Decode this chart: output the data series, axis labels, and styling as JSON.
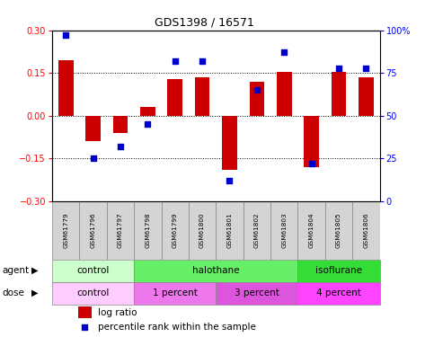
{
  "title": "GDS1398 / 16571",
  "samples": [
    "GSM61779",
    "GSM61796",
    "GSM61797",
    "GSM61798",
    "GSM61799",
    "GSM61800",
    "GSM61801",
    "GSM61802",
    "GSM61803",
    "GSM61804",
    "GSM61805",
    "GSM61806"
  ],
  "log_ratio": [
    0.195,
    -0.09,
    -0.06,
    0.03,
    0.13,
    0.135,
    -0.19,
    0.12,
    0.155,
    -0.18,
    0.155,
    0.135
  ],
  "percentile_rank": [
    97,
    25,
    32,
    45,
    82,
    82,
    12,
    65,
    87,
    22,
    78,
    78
  ],
  "ylim": [
    -0.3,
    0.3
  ],
  "y2lim": [
    0,
    100
  ],
  "yticks": [
    -0.3,
    -0.15,
    0,
    0.15,
    0.3
  ],
  "y2ticks": [
    0,
    25,
    50,
    75,
    100
  ],
  "y2ticklabels": [
    "0",
    "25",
    "50",
    "75",
    "100%"
  ],
  "hlines": [
    -0.15,
    0,
    0.15
  ],
  "bar_color": "#cc0000",
  "scatter_color": "#0000cc",
  "agent_groups": [
    {
      "label": "control",
      "start": 0,
      "end": 3,
      "color": "#ccffcc"
    },
    {
      "label": "halothane",
      "start": 3,
      "end": 9,
      "color": "#66ee66"
    },
    {
      "label": "isoflurane",
      "start": 9,
      "end": 12,
      "color": "#33dd33"
    }
  ],
  "dose_groups": [
    {
      "label": "control",
      "start": 0,
      "end": 3,
      "color": "#ffccff"
    },
    {
      "label": "1 percent",
      "start": 3,
      "end": 6,
      "color": "#ee77ee"
    },
    {
      "label": "3 percent",
      "start": 6,
      "end": 9,
      "color": "#dd55dd"
    },
    {
      "label": "4 percent",
      "start": 9,
      "end": 12,
      "color": "#ff44ff"
    }
  ],
  "legend_log_ratio": "log ratio",
  "legend_percentile": "percentile rank within the sample",
  "agent_label": "agent",
  "dose_label": "dose",
  "title_color": "#000000",
  "bar_width": 0.55,
  "sample_box_color": "#d4d4d4",
  "sample_box_edge": "#888888"
}
